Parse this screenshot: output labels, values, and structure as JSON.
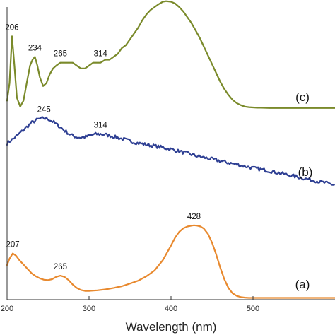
{
  "chart_data": {
    "type": "line",
    "xlabel": "Wavelength (nm)",
    "ylabel": "",
    "xlim": [
      200,
      600
    ],
    "x_ticks": [
      200,
      300,
      400,
      500
    ],
    "grid": false,
    "legend": "none",
    "series": [
      {
        "name": "(c)",
        "color": "#7a8a2a",
        "x": [
          200,
          203,
          206,
          209,
          212,
          216,
          220,
          224,
          228,
          231,
          234,
          237,
          240,
          244,
          248,
          252,
          256,
          260,
          265,
          270,
          275,
          280,
          285,
          290,
          295,
          300,
          305,
          310,
          314,
          320,
          325,
          330,
          335,
          340,
          345,
          350,
          355,
          360,
          365,
          370,
          375,
          380,
          385,
          390,
          394,
          400,
          405,
          410,
          415,
          420,
          425,
          430,
          435,
          440,
          445,
          450,
          455,
          460,
          465,
          470,
          475,
          480,
          485,
          490,
          495,
          500,
          505,
          510,
          520,
          530,
          540,
          560,
          580,
          600
        ],
        "y": [
          0.68,
          0.74,
          0.9,
          0.8,
          0.69,
          0.66,
          0.68,
          0.74,
          0.8,
          0.82,
          0.83,
          0.8,
          0.76,
          0.73,
          0.74,
          0.77,
          0.79,
          0.8,
          0.81,
          0.81,
          0.81,
          0.81,
          0.8,
          0.79,
          0.79,
          0.8,
          0.81,
          0.81,
          0.81,
          0.82,
          0.82,
          0.83,
          0.84,
          0.86,
          0.87,
          0.89,
          0.91,
          0.93,
          0.955,
          0.975,
          0.99,
          1.0,
          1.01,
          1.018,
          1.02,
          1.018,
          1.012,
          1.0,
          0.985,
          0.965,
          0.945,
          0.92,
          0.895,
          0.865,
          0.835,
          0.805,
          0.775,
          0.745,
          0.72,
          0.7,
          0.683,
          0.672,
          0.665,
          0.66,
          0.658,
          0.657,
          0.656,
          0.656,
          0.655,
          0.655,
          0.655,
          0.655,
          0.655,
          0.655
        ],
        "peaks": [
          206,
          234,
          265,
          314,
          394
        ],
        "label": "(c)"
      },
      {
        "name": "(b)",
        "color": "#2e3f93",
        "x": [
          200,
          210,
          220,
          230,
          238,
          245,
          250,
          255,
          260,
          265,
          270,
          275,
          280,
          285,
          290,
          295,
          300,
          305,
          310,
          314,
          320,
          325,
          330,
          340,
          350,
          360,
          370,
          380,
          390,
          400,
          410,
          420,
          430,
          440,
          450,
          460,
          470,
          480,
          490,
          500,
          510,
          520,
          530,
          540,
          550,
          560,
          570,
          580,
          590,
          600
        ],
        "y": [
          0.535,
          0.555,
          0.58,
          0.605,
          0.617,
          0.62,
          0.618,
          0.61,
          0.6,
          0.59,
          0.578,
          0.568,
          0.56,
          0.556,
          0.554,
          0.556,
          0.56,
          0.564,
          0.566,
          0.566,
          0.564,
          0.561,
          0.557,
          0.55,
          0.542,
          0.535,
          0.53,
          0.525,
          0.52,
          0.514,
          0.507,
          0.5,
          0.492,
          0.486,
          0.48,
          0.474,
          0.468,
          0.462,
          0.456,
          0.45,
          0.445,
          0.44,
          0.434,
          0.428,
          0.422,
          0.416,
          0.41,
          0.404,
          0.398,
          0.392
        ],
        "peaks": [
          245,
          314
        ],
        "label": "(b)"
      },
      {
        "name": "(a)",
        "color": "#e8892e",
        "x": [
          200,
          203,
          207,
          211,
          215,
          220,
          225,
          230,
          235,
          240,
          245,
          250,
          255,
          260,
          265,
          270,
          275,
          280,
          285,
          290,
          295,
          300,
          310,
          320,
          330,
          340,
          350,
          360,
          370,
          380,
          390,
          400,
          405,
          410,
          415,
          420,
          425,
          428,
          432,
          436,
          440,
          445,
          450,
          455,
          460,
          465,
          470,
          475,
          480,
          485,
          490,
          495,
          500,
          510,
          520,
          540,
          560,
          580,
          600
        ],
        "y": [
          0.118,
          0.14,
          0.158,
          0.15,
          0.135,
          0.12,
          0.105,
          0.09,
          0.08,
          0.073,
          0.068,
          0.067,
          0.07,
          0.078,
          0.082,
          0.078,
          0.067,
          0.052,
          0.04,
          0.033,
          0.03,
          0.03,
          0.032,
          0.035,
          0.04,
          0.046,
          0.055,
          0.065,
          0.08,
          0.1,
          0.135,
          0.185,
          0.212,
          0.232,
          0.244,
          0.25,
          0.253,
          0.254,
          0.253,
          0.25,
          0.243,
          0.225,
          0.195,
          0.155,
          0.11,
          0.07,
          0.04,
          0.022,
          0.013,
          0.009,
          0.007,
          0.006,
          0.006,
          0.006,
          0.006,
          0.006,
          0.006,
          0.006,
          0.006
        ],
        "peaks": [
          207,
          265,
          428
        ],
        "label": "(a)"
      }
    ]
  }
}
